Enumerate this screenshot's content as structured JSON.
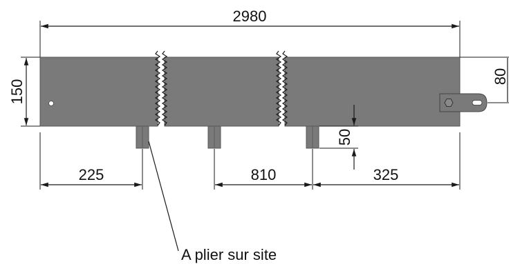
{
  "drawing": {
    "dimensions": {
      "total_length": "2980",
      "height": "150",
      "tab_offset": "80",
      "tab_depth": "50",
      "left_offset": "225",
      "middle_spacing": "810",
      "right_offset": "325"
    },
    "note": "A plier sur site",
    "colors": {
      "plate": "#7a7a7a",
      "plate_edge": "#555555",
      "ink": "#1a1a1a",
      "background": "#ffffff"
    }
  }
}
